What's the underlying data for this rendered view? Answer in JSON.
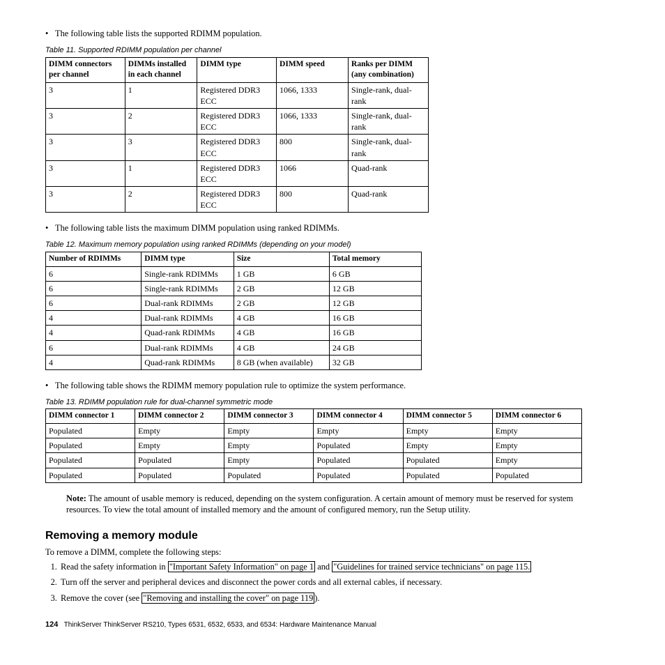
{
  "bullet1": "The following table lists the supported RDIMM population.",
  "caption1": "Table 11. Supported RDIMM population per channel",
  "table11": {
    "headers": [
      "DIMM connectors per channel",
      "DIMMs installed in each channel",
      "DIMM type",
      "DIMM speed",
      "Ranks per DIMM (any combination)"
    ],
    "rows": [
      [
        "3",
        "1",
        "Registered DDR3 ECC",
        "1066, 1333",
        "Single-rank, dual-rank"
      ],
      [
        "3",
        "2",
        "Registered DDR3 ECC",
        "1066, 1333",
        "Single-rank, dual-rank"
      ],
      [
        "3",
        "3",
        "Registered DDR3 ECC",
        "800",
        "Single-rank, dual-rank"
      ],
      [
        "3",
        "1",
        "Registered DDR3 ECC",
        "1066",
        "Quad-rank"
      ],
      [
        "3",
        "2",
        "Registered DDR3 ECC",
        "800",
        "Quad-rank"
      ]
    ]
  },
  "bullet2": "The following table lists the maximum DIMM population using ranked RDIMMs.",
  "caption2": "Table 12. Maximum memory population using ranked RDIMMs (depending on your model)",
  "table12": {
    "headers": [
      "Number of RDIMMs",
      "DIMM type",
      "Size",
      "Total memory"
    ],
    "rows": [
      [
        "6",
        "Single-rank RDIMMs",
        "1 GB",
        "6 GB"
      ],
      [
        "6",
        "Single-rank RDIMMs",
        "2 GB",
        "12 GB"
      ],
      [
        "6",
        "Dual-rank RDIMMs",
        "2 GB",
        "12 GB"
      ],
      [
        "4",
        "Dual-rank RDIMMs",
        "4 GB",
        "16 GB"
      ],
      [
        "4",
        "Quad-rank RDIMMs",
        "4 GB",
        "16 GB"
      ],
      [
        "6",
        "Dual-rank RDIMMs",
        "4 GB",
        "24 GB"
      ],
      [
        "4",
        "Quad-rank RDIMMs",
        "8 GB (when available)",
        "32 GB"
      ]
    ]
  },
  "bullet3": "The following table shows the RDIMM memory population rule to optimize the system performance.",
  "caption3": "Table 13. RDIMM population rule for dual-channel symmetric mode",
  "table13": {
    "headers": [
      "DIMM connector 1",
      "DIMM connector 2",
      "DIMM connector 3",
      "DIMM connector 4",
      "DIMM connector 5",
      "DIMM connector 6"
    ],
    "rows": [
      [
        "Populated",
        "Empty",
        "Empty",
        "Empty",
        "Empty",
        "Empty"
      ],
      [
        "Populated",
        "Empty",
        "Empty",
        "Populated",
        "Empty",
        "Empty"
      ],
      [
        "Populated",
        "Populated",
        "Empty",
        "Populated",
        "Populated",
        "Empty"
      ],
      [
        "Populated",
        "Populated",
        "Populated",
        "Populated",
        "Populated",
        "Populated"
      ]
    ]
  },
  "note_label": "Note:",
  "note_body": " The amount of usable memory is reduced, depending on the system configuration. A certain amount of memory must be reserved for system resources. To view the total amount of installed memory and the amount of configured memory, run the Setup utility.",
  "heading": "Removing a memory module",
  "intro_line": "To remove a DIMM, complete the following steps:",
  "step1_pre": "Read the safety information in ",
  "step1_link1": "\"Important Safety Information\" on page 1",
  "step1_mid": " and ",
  "step1_link2": "\"Guidelines for trained service technicians\" on page 115.",
  "step2": "Turn off the server and peripheral devices and disconnect the power cords and all external cables, if necessary.",
  "step3_pre": "Remove the cover (see ",
  "step3_link": "\"Removing and installing the cover\" on page 119",
  "step3_post": ").",
  "footer_page": "124",
  "footer_text": "ThinkServer ThinkServer RS210, Types 6531, 6532, 6533, and 6534: Hardware Maintenance Manual"
}
